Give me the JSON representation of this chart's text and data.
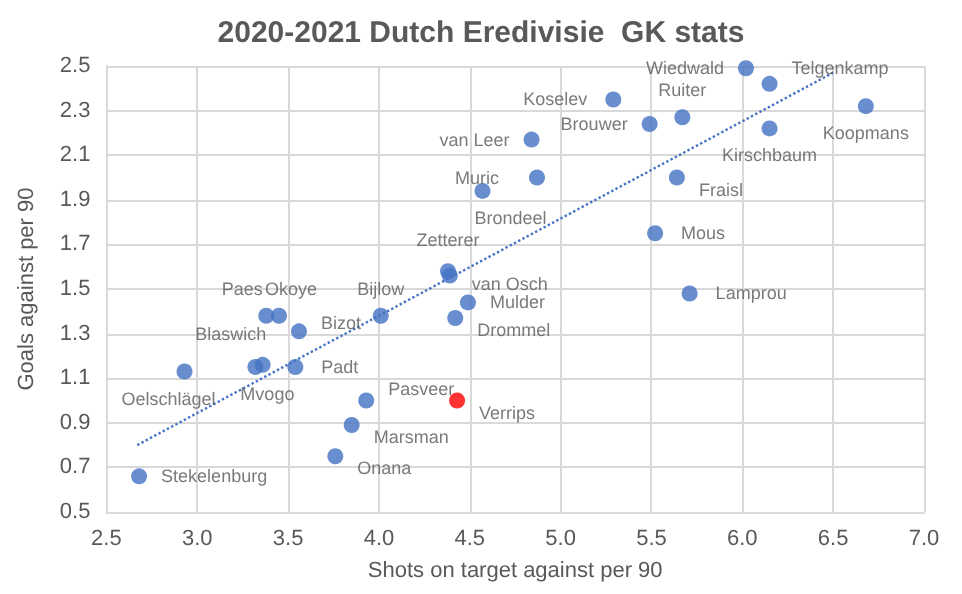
{
  "chart_data": {
    "type": "scatter",
    "title": "2020-2021 Dutch Eredivisie  GK stats",
    "xlabel": "Shots on target against per 90",
    "ylabel": "Goals against per 90",
    "xlim": [
      2.5,
      7.0
    ],
    "xticks": [
      {
        "value": 2.5,
        "label": "2.5"
      },
      {
        "value": 3,
        "label": "3.0"
      },
      {
        "value": 3.5,
        "label": "3.5"
      },
      {
        "value": 4,
        "label": "4.0"
      },
      {
        "value": 4.5,
        "label": "4.5"
      },
      {
        "value": 5,
        "label": "5.0"
      },
      {
        "value": 5.5,
        "label": "5.5"
      },
      {
        "value": 6,
        "label": "6.0"
      },
      {
        "value": 6.5,
        "label": "6.5"
      },
      {
        "value": 7,
        "label": "7.0"
      }
    ],
    "ylim": [
      0.5,
      2.5
    ],
    "yticks": [
      0.5,
      0.7,
      0.9,
      1.1,
      1.3,
      1.5,
      1.7,
      1.9,
      2.1,
      2.3,
      2.5
    ],
    "grid": true,
    "marker": "circle",
    "series": [
      {
        "color": "#4472c4",
        "x": [
          6.02,
          6.15,
          5.29,
          5.67,
          5.49,
          6.68,
          6.15,
          4.84,
          4.87,
          4.57,
          5.64,
          5.52,
          5.71,
          4.38,
          4.39,
          4.49,
          4.42,
          4.01,
          3.38,
          3.45,
          3.56,
          3.54,
          3.36,
          3.32,
          2.93,
          3.93,
          4.43,
          3.85,
          3.76,
          2.68
        ],
        "values": [
          2.49,
          2.42,
          2.35,
          2.27,
          2.24,
          2.32,
          2.22,
          2.17,
          2.0,
          1.94,
          2.0,
          1.75,
          1.48,
          1.58,
          1.56,
          1.44,
          1.37,
          1.38,
          1.38,
          1.38,
          1.31,
          1.15,
          1.16,
          1.15,
          1.13,
          1.0,
          1.0,
          0.89,
          0.75,
          0.66
        ],
        "colors": [
          "#4472c4",
          "#4472c4",
          "#4472c4",
          "#4472c4",
          "#4472c4",
          "#4472c4",
          "#4472c4",
          "#4472c4",
          "#4472c4",
          "#4472c4",
          "#4472c4",
          "#4472c4",
          "#4472c4",
          "#4472c4",
          "#4472c4",
          "#4472c4",
          "#4472c4",
          "#4472c4",
          "#4472c4",
          "#4472c4",
          "#4472c4",
          "#4472c4",
          "#4472c4",
          "#4472c4",
          "#4472c4",
          "#4472c4",
          "#ff0000",
          "#4472c4",
          "#4472c4",
          "#4472c4"
        ]
      },
      {
        "type": "line",
        "color": "#4472c4",
        "line_style": "dotted",
        "marker": "none",
        "x": [
          2.67,
          6.5
        ],
        "values": [
          0.8,
          2.47
        ]
      }
    ],
    "annotations": [
      {
        "text": "Wiedwald",
        "x": 6.02,
        "y": 2.49
      },
      {
        "text": "Telgenkamp",
        "x": 6.15,
        "y": 2.42
      },
      {
        "text": "Koselev",
        "x": 5.29,
        "y": 2.35
      },
      {
        "text": "Ruiter",
        "x": 5.67,
        "y": 2.27
      },
      {
        "text": "Brouwer",
        "x": 5.49,
        "y": 2.24
      },
      {
        "text": "Koopmans",
        "x": 6.68,
        "y": 2.32
      },
      {
        "text": "Kirschbaum",
        "x": 6.15,
        "y": 2.22
      },
      {
        "text": "van Leer",
        "x": 4.84,
        "y": 2.17
      },
      {
        "text": "Muric",
        "x": 4.87,
        "y": 2.0
      },
      {
        "text": "Brondeel",
        "x": 4.57,
        "y": 1.94
      },
      {
        "text": "Fraisl",
        "x": 5.64,
        "y": 2.0
      },
      {
        "text": "Mous",
        "x": 5.52,
        "y": 1.75
      },
      {
        "text": "Lamprou",
        "x": 5.71,
        "y": 1.48
      },
      {
        "text": "Zetterer",
        "x": 4.38,
        "y": 1.58
      },
      {
        "text": "van Osch",
        "x": 4.39,
        "y": 1.56
      },
      {
        "text": "Mulder",
        "x": 4.49,
        "y": 1.44
      },
      {
        "text": "Drommel",
        "x": 4.42,
        "y": 1.37
      },
      {
        "text": "Bijlow",
        "x": 4.01,
        "y": 1.38
      },
      {
        "text": "Paes",
        "x": 3.38,
        "y": 1.38
      },
      {
        "text": "Okoye",
        "x": 3.45,
        "y": 1.38
      },
      {
        "text": "Bizot",
        "x": 3.56,
        "y": 1.31
      },
      {
        "text": "Padt",
        "x": 3.54,
        "y": 1.15
      },
      {
        "text": "Blaswich",
        "x": 3.36,
        "y": 1.16
      },
      {
        "text": "Mvogo",
        "x": 3.32,
        "y": 1.15
      },
      {
        "text": "Oelschlägel",
        "x": 2.93,
        "y": 1.13
      },
      {
        "text": "Pasveer",
        "x": 3.93,
        "y": 1.0
      },
      {
        "text": "Verrips",
        "x": 4.43,
        "y": 1.0
      },
      {
        "text": "Marsman",
        "x": 3.85,
        "y": 0.89
      },
      {
        "text": "Onana",
        "x": 3.76,
        "y": 0.75
      },
      {
        "text": "Stekelenburg",
        "x": 2.68,
        "y": 0.66
      }
    ]
  }
}
